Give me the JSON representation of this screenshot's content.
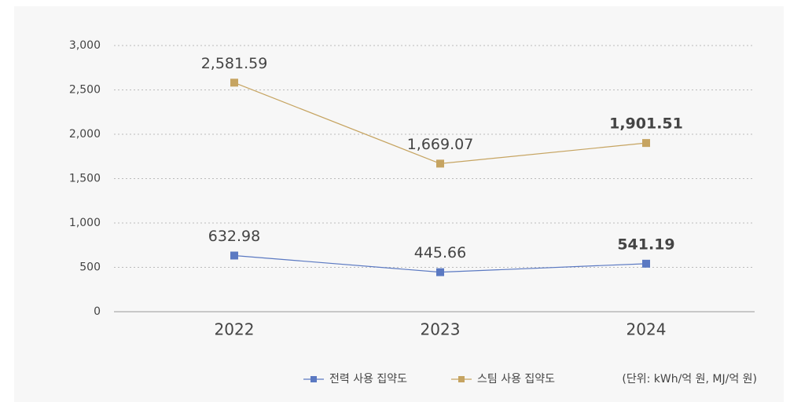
{
  "chart_data": {
    "type": "line",
    "categories": [
      "2022",
      "2023",
      "2024"
    ],
    "series": [
      {
        "name": "전력 사용 집약도",
        "color": "#5b79c2",
        "values": [
          632.98,
          445.66,
          541.19
        ],
        "value_labels": [
          "632.98",
          "445.66",
          "541.19"
        ]
      },
      {
        "name": "스팀 사용 집약도",
        "color": "#c6a461",
        "values": [
          2581.59,
          1669.07,
          1901.51
        ],
        "value_labels": [
          "2,581.59",
          "1,669.07",
          "1,901.51"
        ]
      }
    ],
    "ylim": [
      0,
      3000
    ],
    "yticks": [
      0,
      500,
      {
        "value": 1000,
        "label": "1,000"
      },
      {
        "value": 1500,
        "label": "1,500"
      },
      {
        "value": 2000,
        "label": "2,000"
      },
      {
        "value": 2500,
        "label": "2,500"
      },
      {
        "value": 3000,
        "label": "3,000"
      }
    ],
    "grid": true,
    "legend": "bottom",
    "annotation": "(단위: kWh/억 원, MJ/억 원)"
  }
}
